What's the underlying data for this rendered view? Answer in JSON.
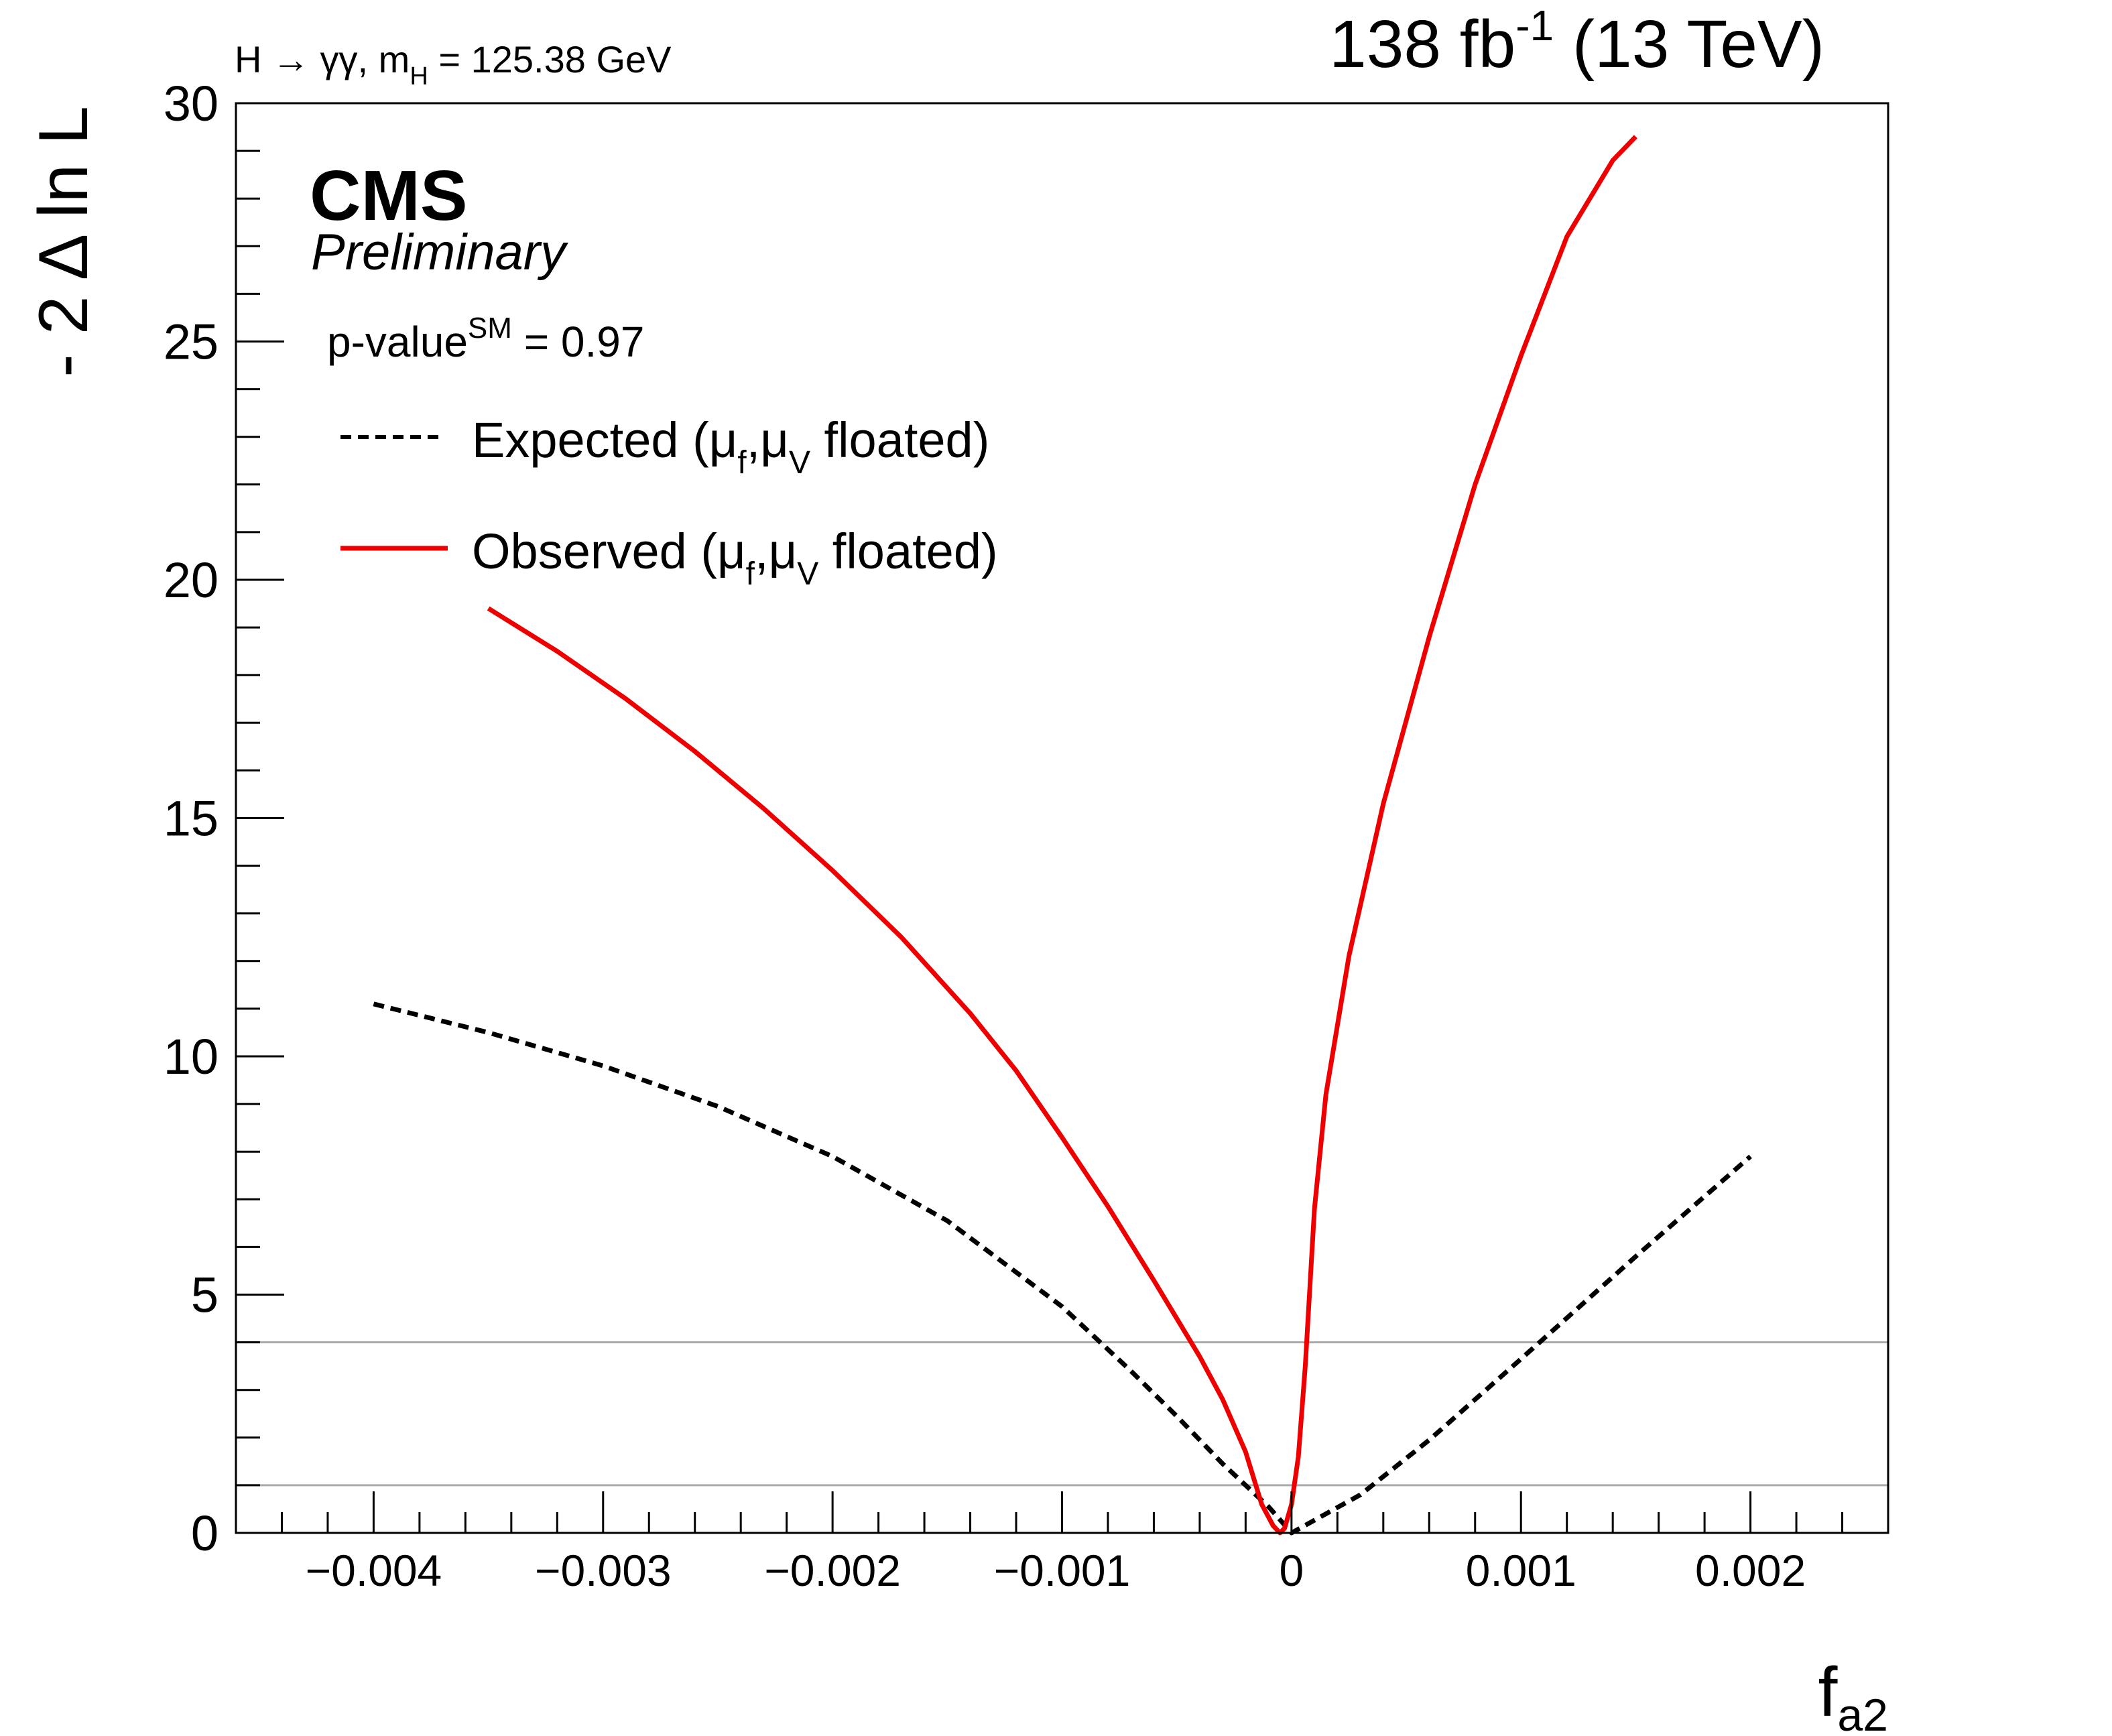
{
  "header": {
    "process_main": "H → γγ, m",
    "process_sub": "H",
    "process_tail": " = 125.38 GeV",
    "lumi_main": "138 fb",
    "lumi_sup": "-1",
    "lumi_tail": " (13 TeV)"
  },
  "labels": {
    "cms": "CMS",
    "preliminary": "Preliminary",
    "pvalue_main": "p-value",
    "pvalue_sup": "SM",
    "pvalue_tail": " = 0.97"
  },
  "legend": {
    "expected": {
      "pre": "Expected (μ",
      "sub1": "f",
      "mid": ",μ",
      "sub2": "V",
      "post": " floated)"
    },
    "observed": {
      "pre": "Observed (μ",
      "sub1": "f",
      "mid": ",μ",
      "sub2": "V",
      "post": " floated)"
    }
  },
  "colors": {
    "observed": "#ee0000",
    "expected": "#000000",
    "reference_lines": "#aaaaaa",
    "axis": "#000000"
  },
  "chart_data": {
    "type": "line",
    "xlabel_main": "f",
    "xlabel_sub": "a2",
    "ylabel": "- 2 Δ ln L",
    "xlim": [
      -0.0046,
      0.0026
    ],
    "ylim": [
      0,
      30
    ],
    "x_ticks": [
      -0.004,
      -0.003,
      -0.002,
      -0.001,
      0,
      0.001,
      0.002
    ],
    "x_tick_labels": [
      "−0.004",
      "−0.003",
      "−0.002",
      "−0.001",
      "0",
      "0.001",
      "0.002"
    ],
    "y_ticks": [
      0,
      5,
      10,
      15,
      20,
      25,
      30
    ],
    "y_tick_labels": [
      "0",
      "5",
      "10",
      "15",
      "20",
      "25",
      "30"
    ],
    "reference_lines": [
      1,
      4
    ],
    "series": [
      {
        "name": "Expected (μf,μV floated)",
        "style": "dashed",
        "x": [
          -0.004,
          -0.0035,
          -0.003,
          -0.0025,
          -0.002,
          -0.0015,
          -0.001,
          -0.0007,
          -0.0005,
          -0.0003,
          -0.0001,
          0.0,
          0.0003,
          0.0006,
          0.001,
          0.0015,
          0.002
        ],
        "y": [
          11.1,
          10.5,
          9.8,
          8.95,
          7.9,
          6.55,
          4.75,
          3.4,
          2.45,
          1.45,
          0.55,
          0.0,
          0.8,
          1.95,
          3.65,
          5.8,
          7.9
        ]
      },
      {
        "name": "Observed (μf,μV floated)",
        "style": "solid",
        "x": [
          -0.0035,
          -0.0032,
          -0.0029,
          -0.0026,
          -0.0023,
          -0.002,
          -0.0017,
          -0.0014,
          -0.0012,
          -0.001,
          -0.0008,
          -0.0006,
          -0.0004,
          -0.0003,
          -0.0002,
          -0.00013,
          -8e-05,
          -5e-05,
          -3e-05,
          0.0,
          3e-05,
          6e-05,
          0.0001,
          0.00015,
          0.00025,
          0.0004,
          0.0006,
          0.0008,
          0.001,
          0.0012,
          0.0014,
          0.0015
        ],
        "y": [
          19.4,
          18.5,
          17.5,
          16.4,
          15.2,
          13.9,
          12.5,
          10.9,
          9.7,
          8.3,
          6.85,
          5.3,
          3.7,
          2.8,
          1.7,
          0.6,
          0.15,
          0.0,
          0.1,
          0.6,
          1.6,
          3.5,
          6.8,
          9.2,
          12.1,
          15.3,
          18.8,
          22.0,
          24.7,
          27.2,
          28.8,
          29.3
        ]
      }
    ]
  }
}
